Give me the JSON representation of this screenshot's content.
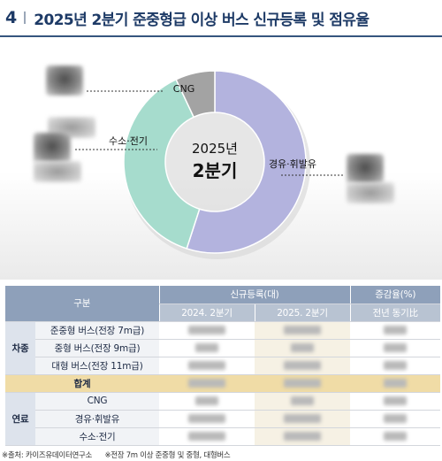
{
  "header": {
    "number": "4",
    "title": "2025년 2분기 준중형급 이상 버스 신규등록 및 점유율"
  },
  "chart_data": {
    "type": "pie",
    "donut": true,
    "center_label_line1": "2025년",
    "center_label_line2": "2분기",
    "slices": [
      {
        "label": "경유·휘발유",
        "value": 55,
        "color": "#b3b3de"
      },
      {
        "label": "수소·전기",
        "value": 38,
        "color": "#a6dccd"
      },
      {
        "label": "CNG",
        "value": 7,
        "color": "#a3a3a3"
      }
    ],
    "value_labels": "obscured"
  },
  "table": {
    "header_top": {
      "category": "구분",
      "registrations": "신규등록(대)",
      "change": "증감율(%)"
    },
    "header_sub": {
      "col_2024": "2024. 2분기",
      "col_2025": "2025. 2분기",
      "col_yoy": "전년 동기比"
    },
    "groups": {
      "vehicle": "차종",
      "fuel": "연료"
    },
    "rows": {
      "vehicle": [
        "준중형 버스(전장 7m급)",
        "중형 버스(전장 9m급)",
        "대형 버스(전장 11m급)"
      ],
      "total": "합계",
      "fuel": [
        "CNG",
        "경유·휘발유",
        "수소·전기"
      ]
    }
  },
  "source": {
    "note1": "※출처: 카이즈유데이터연구소",
    "note2": "※전장 7m 이상 준중형 및 중형, 대형버스"
  }
}
